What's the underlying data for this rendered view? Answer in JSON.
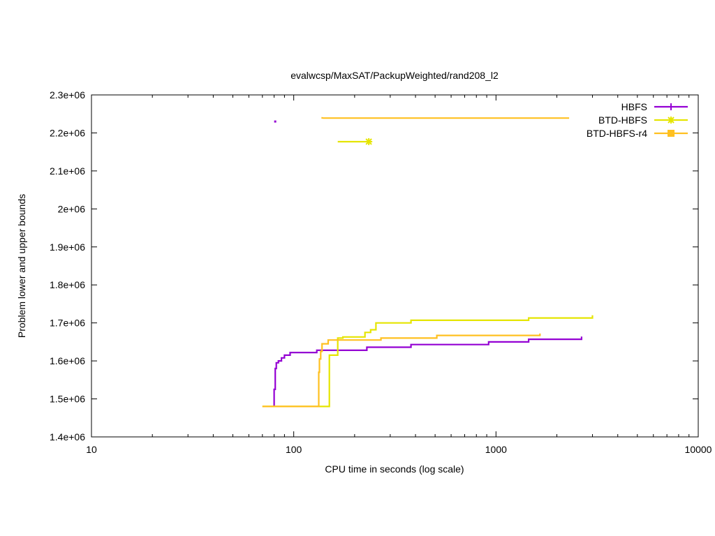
{
  "chart_data": {
    "type": "line",
    "title": "evalwcsp/MaxSAT/PackupWeighted/rand208_l2",
    "xlabel": "CPU time in seconds (log scale)",
    "ylabel": "Problem lower and upper bounds",
    "xscale": "log",
    "xlim": [
      10,
      10000
    ],
    "ylim": [
      1400000,
      2300000
    ],
    "grid": false,
    "legend_position": "top-right",
    "x_ticks": [
      {
        "value": 10,
        "label": "10"
      },
      {
        "value": 100,
        "label": "100"
      },
      {
        "value": 1000,
        "label": "1000"
      },
      {
        "value": 10000,
        "label": "10000"
      }
    ],
    "y_ticks": [
      {
        "value": 1400000,
        "label": "1.4e+06"
      },
      {
        "value": 1500000,
        "label": "1.5e+06"
      },
      {
        "value": 1600000,
        "label": "1.6e+06"
      },
      {
        "value": 1700000,
        "label": "1.7e+06"
      },
      {
        "value": 1800000,
        "label": "1.8e+06"
      },
      {
        "value": 1900000,
        "label": "1.9e+06"
      },
      {
        "value": 2000000,
        "label": "2e+06"
      },
      {
        "value": 2100000,
        "label": "2.1e+06"
      },
      {
        "value": 2200000,
        "label": "2.2e+06"
      },
      {
        "value": 2300000,
        "label": "2.3e+06"
      }
    ],
    "series": [
      {
        "name": "HBFS",
        "color": "#9400d3",
        "marker": "plus",
        "lower": [
          [
            79,
            1480000
          ],
          [
            80,
            1525000
          ],
          [
            81,
            1580000
          ],
          [
            82,
            1595000
          ],
          [
            84,
            1600000
          ],
          [
            87,
            1608000
          ],
          [
            90,
            1615000
          ],
          [
            96,
            1622000
          ],
          [
            130,
            1628000
          ],
          [
            230,
            1636000
          ],
          [
            380,
            1643000
          ],
          [
            920,
            1650000
          ],
          [
            1450,
            1657000
          ],
          [
            2650,
            1664000
          ]
        ],
        "upper": [
          [
            81,
            2230000
          ]
        ]
      },
      {
        "name": "BTD-HBFS",
        "color": "#e5e500",
        "marker": "star",
        "lower": [
          [
            70,
            1480000
          ],
          [
            148,
            1480000
          ],
          [
            150,
            1615000
          ],
          [
            165,
            1660000
          ],
          [
            175,
            1663000
          ],
          [
            225,
            1675000
          ],
          [
            240,
            1682000
          ],
          [
            255,
            1700000
          ],
          [
            380,
            1707000
          ],
          [
            1450,
            1713000
          ],
          [
            3000,
            1720000
          ]
        ],
        "upper": [
          [
            165,
            2177000
          ],
          [
            235,
            2177000
          ]
        ]
      },
      {
        "name": "BTD-HBFS-r4",
        "color": "#ffc020",
        "marker": "square",
        "lower": [
          [
            70,
            1480000
          ],
          [
            132,
            1480000
          ],
          [
            133,
            1570000
          ],
          [
            134,
            1605000
          ],
          [
            136,
            1625000
          ],
          [
            138,
            1645000
          ],
          [
            148,
            1655000
          ],
          [
            270,
            1660000
          ],
          [
            510,
            1667000
          ],
          [
            1650,
            1672000
          ]
        ],
        "upper": [
          [
            137,
            2240000
          ],
          [
            140,
            2239000
          ],
          [
            2300,
            2239000
          ]
        ]
      }
    ]
  }
}
